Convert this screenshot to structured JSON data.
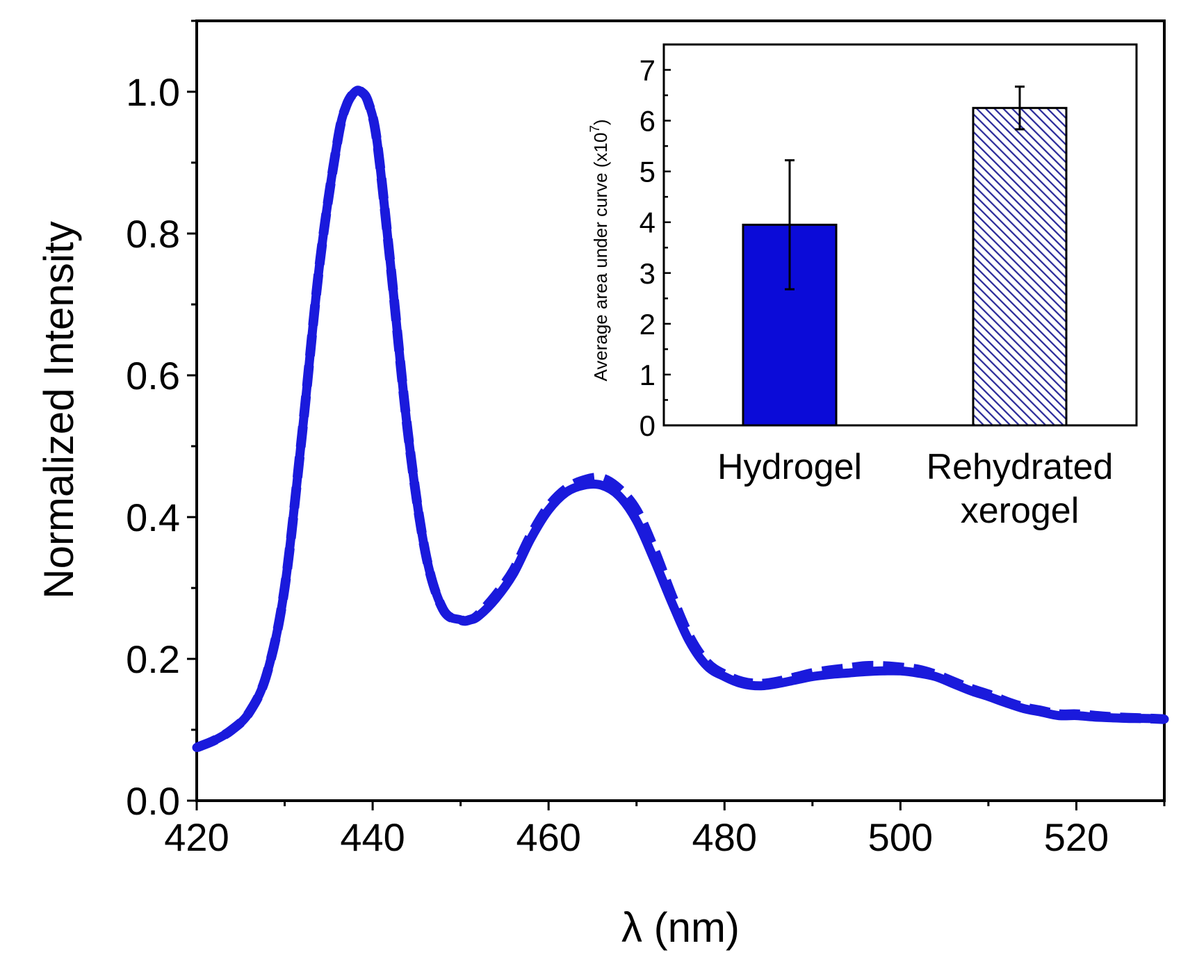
{
  "chart_data": [
    {
      "type": "line",
      "xlabel": "λ (nm)",
      "ylabel": "Normalized Intensity",
      "xlim": [
        420,
        530
      ],
      "ylim": [
        0,
        1.1
      ],
      "xticks": [
        420,
        440,
        460,
        480,
        500,
        520
      ],
      "xtick_labels": [
        "420",
        "440",
        "460",
        "480",
        "500",
        "520"
      ],
      "yticks": [
        0.0,
        0.2,
        0.4,
        0.6,
        0.8,
        1.0
      ],
      "ytick_labels": [
        "0.0",
        "0.2",
        "0.4",
        "0.6",
        "0.8",
        "1.0"
      ],
      "series": [
        {
          "name": "Hydrogel",
          "style": "solid",
          "color": "#1a1adc",
          "x": [
            420,
            422,
            424,
            426,
            428,
            430,
            432,
            434,
            436,
            437,
            438,
            438.7,
            439.5,
            440.5,
            442,
            444,
            446,
            448,
            450,
            451,
            452,
            454,
            456,
            458,
            460,
            462,
            464,
            466,
            468,
            470,
            472,
            474,
            476,
            478,
            480,
            482,
            484,
            486,
            488,
            490,
            492,
            494,
            496,
            498,
            500,
            502,
            504,
            506,
            508,
            510,
            512,
            514,
            516,
            518,
            520,
            522,
            524,
            526,
            528,
            530
          ],
          "y": [
            0.075,
            0.085,
            0.1,
            0.125,
            0.18,
            0.3,
            0.52,
            0.76,
            0.93,
            0.98,
            1.0,
            1.0,
            0.985,
            0.93,
            0.76,
            0.52,
            0.35,
            0.27,
            0.255,
            0.255,
            0.26,
            0.285,
            0.32,
            0.37,
            0.41,
            0.435,
            0.445,
            0.445,
            0.43,
            0.395,
            0.34,
            0.28,
            0.225,
            0.19,
            0.175,
            0.165,
            0.162,
            0.165,
            0.17,
            0.175,
            0.178,
            0.18,
            0.182,
            0.183,
            0.183,
            0.18,
            0.175,
            0.165,
            0.155,
            0.147,
            0.138,
            0.13,
            0.125,
            0.12,
            0.12,
            0.118,
            0.117,
            0.116,
            0.116,
            0.115
          ]
        },
        {
          "name": "Rehydrated xerogel",
          "style": "dashed",
          "color": "#1a1adc",
          "x": [
            420,
            422,
            424,
            426,
            428,
            430,
            432,
            434,
            436,
            437,
            438,
            438.7,
            439.5,
            440.5,
            442,
            444,
            446,
            448,
            450,
            451,
            452,
            454,
            456,
            458,
            460,
            462,
            464,
            466,
            468,
            470,
            472,
            474,
            476,
            478,
            480,
            482,
            484,
            486,
            488,
            490,
            492,
            494,
            496,
            498,
            500,
            502,
            504,
            506,
            508,
            510,
            512,
            514,
            516,
            518,
            520,
            522,
            524,
            526,
            528,
            530
          ],
          "y": [
            0.075,
            0.085,
            0.1,
            0.125,
            0.18,
            0.3,
            0.52,
            0.76,
            0.93,
            0.98,
            1.0,
            1.0,
            0.985,
            0.93,
            0.76,
            0.52,
            0.35,
            0.27,
            0.255,
            0.255,
            0.262,
            0.29,
            0.325,
            0.375,
            0.415,
            0.44,
            0.452,
            0.455,
            0.44,
            0.41,
            0.355,
            0.29,
            0.232,
            0.195,
            0.178,
            0.168,
            0.165,
            0.168,
            0.174,
            0.18,
            0.184,
            0.187,
            0.19,
            0.19,
            0.188,
            0.185,
            0.178,
            0.168,
            0.158,
            0.15,
            0.14,
            0.132,
            0.127,
            0.122,
            0.122,
            0.12,
            0.118,
            0.117,
            0.116,
            0.115
          ]
        }
      ]
    },
    {
      "type": "bar",
      "ylabel": "Average area under curve (x10",
      "ylabel_superscript": "7",
      "ylabel_suffix": ")",
      "ylim": [
        0,
        7.5
      ],
      "yticks": [
        0,
        1,
        2,
        3,
        4,
        5,
        6,
        7
      ],
      "ytick_labels": [
        "0",
        "1",
        "2",
        "3",
        "4",
        "5",
        "6",
        "7"
      ],
      "categories": [
        "Hydrogel",
        "Rehydrated xerogel"
      ],
      "category_label_lines": [
        [
          "Hydrogel"
        ],
        [
          "Rehydrated",
          "xerogel"
        ]
      ],
      "values": [
        3.95,
        6.25
      ],
      "errors": [
        1.27,
        0.42
      ],
      "fills": [
        "solid",
        "hatched"
      ],
      "color": "#0b0bd8"
    }
  ]
}
